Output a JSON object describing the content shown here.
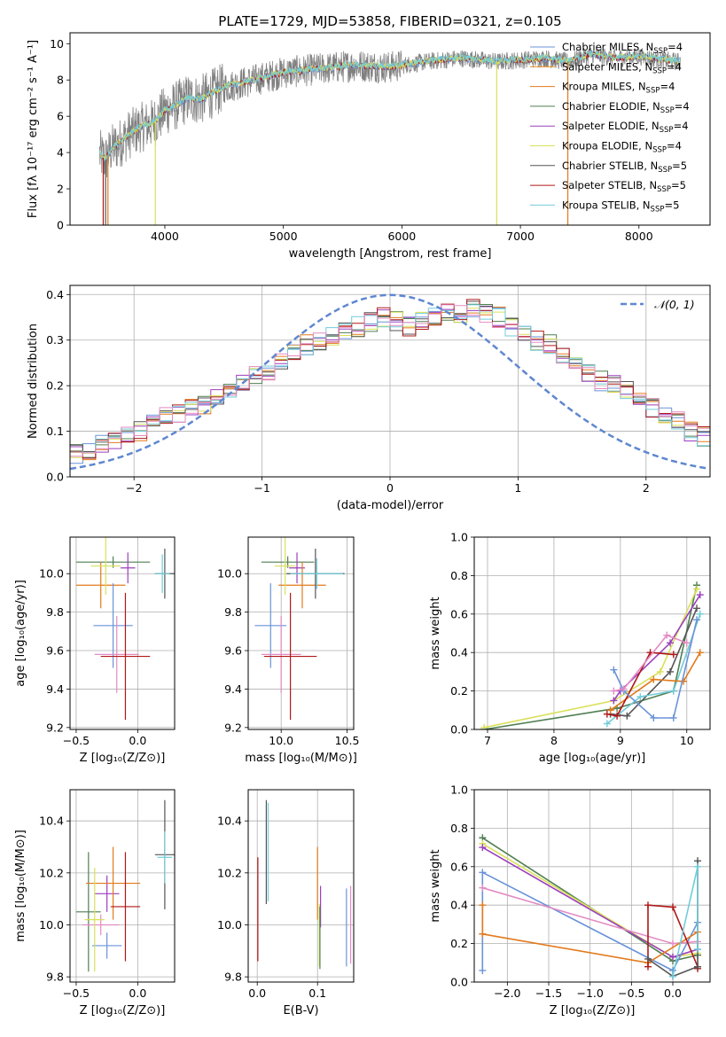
{
  "title": "PLATE=1729, MJD=53858, FIBERID=0321, z=0.105",
  "colors": {
    "chabrier_miles": "#6a93d8",
    "salpeter_miles": "#e8880e",
    "kroupa_miles": "#e27a1c",
    "chabrier_elodie": "#4f7f52",
    "salpeter_elodie": "#9b3fbd",
    "kroupa_elodie": "#d9e05a",
    "chabrier_stelib": "#555555",
    "salpeter_stelib": "#b01818",
    "kroupa_stelib": "#72ccd9",
    "data": "#808080",
    "gauss": "#5f87d0",
    "pink": "#e38bc3"
  },
  "chart_data": [
    {
      "id": "spectrum",
      "type": "line",
      "xlabel": "wavelength [Angstrom, rest frame]",
      "ylabel": "Flux [fλ 10⁻¹⁷ erg cm⁻² s⁻¹ A⁻¹]",
      "xlim": [
        3200,
        8600
      ],
      "ylim": [
        0,
        10.6
      ],
      "xticks": [
        4000,
        5000,
        6000,
        7000,
        8000
      ],
      "yticks": [
        0,
        2,
        4,
        6,
        8,
        10
      ],
      "legend_placement": "top-right",
      "legend": [
        {
          "label": "Chabrier MILES, N",
          "sub": "SSP",
          "suffix": "=4",
          "color": "#6a93d8"
        },
        {
          "label": "Salpeter MILES, N",
          "sub": "SSP",
          "suffix": "=4",
          "color": "#e8880e"
        },
        {
          "label": "Kroupa MILES, N",
          "sub": "SSP",
          "suffix": "=4",
          "color": "#e27a1c"
        },
        {
          "label": "Chabrier ELODIE, N",
          "sub": "SSP",
          "suffix": "=4",
          "color": "#4f7f52"
        },
        {
          "label": "Salpeter ELODIE, N",
          "sub": "SSP",
          "suffix": "=4",
          "color": "#9b3fbd"
        },
        {
          "label": "Kroupa ELODIE, N",
          "sub": "SSP",
          "suffix": "=4",
          "color": "#d9e05a"
        },
        {
          "label": "Chabrier STELIB, N",
          "sub": "SSP",
          "suffix": "=5",
          "color": "#555555"
        },
        {
          "label": "Salpeter STELIB, N",
          "sub": "SSP",
          "suffix": "=5",
          "color": "#b01818"
        },
        {
          "label": "Kroupa STELIB, N",
          "sub": "SSP",
          "suffix": "=5",
          "color": "#72ccd9"
        }
      ],
      "data_range": [
        3450,
        8350
      ],
      "model_curve": {
        "x": [
          3450,
          3500,
          3550,
          3600,
          3700,
          3800,
          3900,
          4000,
          4100,
          4200,
          4300,
          4500,
          4700,
          5000,
          5300,
          5600,
          5900,
          6200,
          6500,
          6800,
          7000,
          7200,
          7400,
          7600,
          7800,
          8000,
          8200,
          8350
        ],
        "y": [
          3.9,
          3.6,
          4.2,
          4.4,
          5.0,
          5.4,
          5.6,
          6.3,
          6.6,
          7.0,
          6.9,
          7.6,
          7.9,
          8.4,
          8.6,
          8.8,
          8.7,
          9.0,
          9.2,
          9.0,
          9.1,
          9.2,
          9.0,
          9.4,
          9.2,
          9.3,
          9.1,
          9.0
        ]
      }
    },
    {
      "id": "residuals",
      "type": "histogram",
      "xlabel": "(data-model)/error",
      "ylabel": "Normed distribution",
      "xlim": [
        -2.5,
        2.5
      ],
      "ylim": [
        0,
        0.42
      ],
      "xticks": [
        -2,
        -1,
        0,
        1,
        2
      ],
      "yticks": [
        0.0,
        0.1,
        0.2,
        0.3,
        0.4
      ],
      "legend_placement": "top-right",
      "legend_label": "𝒩(0, 1)",
      "bin_width": 0.1,
      "envelope": [
        0.05,
        0.06,
        0.07,
        0.08,
        0.09,
        0.1,
        0.12,
        0.13,
        0.14,
        0.15,
        0.16,
        0.18,
        0.19,
        0.21,
        0.22,
        0.23,
        0.25,
        0.27,
        0.29,
        0.3,
        0.31,
        0.32,
        0.33,
        0.34,
        0.35,
        0.34,
        0.33,
        0.34,
        0.35,
        0.36,
        0.36,
        0.37,
        0.36,
        0.35,
        0.33,
        0.32,
        0.3,
        0.29,
        0.27,
        0.25,
        0.23,
        0.21,
        0.2,
        0.19,
        0.17,
        0.15,
        0.14,
        0.12,
        0.1,
        0.09
      ]
    },
    {
      "id": "age_vs_Z",
      "type": "errorbar",
      "xlabel": "Z [log₁₀(Z/Z⊙)]",
      "ylabel": "age  [log₁₀(age/yr)]",
      "xlim": [
        -0.55,
        0.3
      ],
      "ylim": [
        9.19,
        10.19
      ],
      "xticks": [
        -0.5,
        0.0
      ],
      "xtick_labels": [
        "−0.5",
        "0.0"
      ],
      "yticks": [
        9.2,
        9.4,
        9.6,
        9.8,
        10.0
      ],
      "points": [
        {
          "x": -0.2,
          "y": 10.06,
          "xerr": 0.3,
          "yerr": 0.03,
          "c": "#4f7f52"
        },
        {
          "x": -0.08,
          "y": 10.03,
          "xerr": 0.06,
          "yerr": 0.08,
          "c": "#9b3fbd"
        },
        {
          "x": -0.3,
          "y": 9.94,
          "xerr": 0.2,
          "yerr": 0.12,
          "c": "#e27a1c"
        },
        {
          "x": -0.2,
          "y": 9.73,
          "xerr": 0.16,
          "yerr": 0.22,
          "c": "#6a93d8"
        },
        {
          "x": -0.17,
          "y": 9.58,
          "xerr": 0.18,
          "yerr": 0.2,
          "c": "#e38bc3"
        },
        {
          "x": -0.1,
          "y": 9.57,
          "xerr": 0.2,
          "yerr": 0.33,
          "c": "#b01818"
        },
        {
          "x": 0.22,
          "y": 10.0,
          "xerr": 0.08,
          "yerr": 0.13,
          "c": "#555555"
        },
        {
          "x": 0.2,
          "y": 10.0,
          "xerr": 0.06,
          "yerr": 0.1,
          "c": "#72ccd9"
        },
        {
          "x": -0.26,
          "y": 10.04,
          "xerr": 0.12,
          "yerr": 0.15,
          "c": "#d9e05a"
        }
      ]
    },
    {
      "id": "age_vs_mass",
      "type": "errorbar",
      "xlabel": "mass [log₁₀(M/M⊙)]",
      "ylabel": "",
      "xlim": [
        9.75,
        10.55
      ],
      "ylim": [
        9.19,
        10.19
      ],
      "xticks": [
        10.0,
        10.5
      ],
      "yticks": [
        9.2,
        9.4,
        9.6,
        9.8,
        10.0
      ],
      "points": [
        {
          "x": 10.05,
          "y": 10.06,
          "xerr": 0.2,
          "yerr": 0.03,
          "c": "#4f7f52"
        },
        {
          "x": 10.12,
          "y": 10.03,
          "xerr": 0.06,
          "yerr": 0.08,
          "c": "#9b3fbd"
        },
        {
          "x": 10.16,
          "y": 9.94,
          "xerr": 0.18,
          "yerr": 0.12,
          "c": "#e27a1c"
        },
        {
          "x": 9.92,
          "y": 9.73,
          "xerr": 0.12,
          "yerr": 0.22,
          "c": "#6a93d8"
        },
        {
          "x": 10.0,
          "y": 9.58,
          "xerr": 0.15,
          "yerr": 0.2,
          "c": "#e38bc3"
        },
        {
          "x": 10.07,
          "y": 9.57,
          "xerr": 0.2,
          "yerr": 0.33,
          "c": "#b01818"
        },
        {
          "x": 10.26,
          "y": 10.0,
          "xerr": 0.22,
          "yerr": 0.13,
          "c": "#555555"
        },
        {
          "x": 10.27,
          "y": 10.0,
          "xerr": 0.2,
          "yerr": 0.08,
          "c": "#72ccd9"
        },
        {
          "x": 10.03,
          "y": 10.04,
          "xerr": 0.08,
          "yerr": 0.15,
          "c": "#d9e05a"
        }
      ]
    },
    {
      "id": "massweight_vs_age",
      "type": "line",
      "xlabel": "age  [log₁₀(age/yr)]",
      "ylabel": "mass weight",
      "xlim": [
        6.8,
        10.35
      ],
      "ylim": [
        0,
        1
      ],
      "xticks": [
        7,
        8,
        9,
        10
      ],
      "yticks": [
        0.0,
        0.2,
        0.4,
        0.6,
        0.8,
        1.0
      ],
      "series": [
        {
          "c": "#4f7f52",
          "x": [
            6.95,
            8.95,
            9.8,
            10.15
          ],
          "y": [
            0.0,
            0.11,
            0.2,
            0.75
          ]
        },
        {
          "c": "#d9e05a",
          "x": [
            6.95,
            8.9,
            9.6,
            10.15
          ],
          "y": [
            0.01,
            0.15,
            0.3,
            0.73
          ]
        },
        {
          "c": "#9b3fbd",
          "x": [
            8.9,
            9.0,
            9.75,
            10.2
          ],
          "y": [
            0.15,
            0.2,
            0.45,
            0.7
          ]
        },
        {
          "c": "#555555",
          "x": [
            8.85,
            9.1,
            9.75,
            10.15
          ],
          "y": [
            0.08,
            0.07,
            0.3,
            0.63
          ]
        },
        {
          "c": "#72ccd9",
          "x": [
            8.8,
            9.3,
            9.8,
            10.2
          ],
          "y": [
            0.03,
            0.17,
            0.2,
            0.6
          ]
        },
        {
          "c": "#e27a1c",
          "x": [
            8.85,
            9.5,
            9.95,
            10.2
          ],
          "y": [
            0.1,
            0.26,
            0.25,
            0.4
          ]
        },
        {
          "c": "#b01818",
          "x": [
            8.8,
            8.95,
            9.45,
            9.8
          ],
          "y": [
            0.08,
            0.07,
            0.4,
            0.39
          ]
        },
        {
          "c": "#6a93d8",
          "x": [
            8.9,
            9.05,
            9.5,
            9.8,
            10.15
          ],
          "y": [
            0.31,
            0.2,
            0.06,
            0.06,
            0.57
          ]
        },
        {
          "c": "#e38bc3",
          "x": [
            8.9,
            9.05,
            9.7,
            10.0
          ],
          "y": [
            0.2,
            0.21,
            0.49,
            0.45
          ]
        }
      ]
    },
    {
      "id": "mass_vs_Z",
      "type": "errorbar",
      "xlabel": "Z [log₁₀(Z/Z⊙)]",
      "ylabel": "mass [log₁₀(M/M⊙)]",
      "xlim": [
        -0.55,
        0.3
      ],
      "ylim": [
        9.78,
        10.52
      ],
      "xticks": [
        -0.5,
        0.0
      ],
      "xtick_labels": [
        "−0.5",
        "0.0"
      ],
      "yticks": [
        9.8,
        10.0,
        10.2,
        10.4
      ],
      "points": [
        {
          "x": -0.4,
          "y": 10.05,
          "xerr": 0.1,
          "yerr": 0.23,
          "c": "#4f7f52"
        },
        {
          "x": -0.25,
          "y": 10.12,
          "xerr": 0.1,
          "yerr": 0.07,
          "c": "#9b3fbd"
        },
        {
          "x": -0.2,
          "y": 10.16,
          "xerr": 0.22,
          "yerr": 0.14,
          "c": "#e27a1c"
        },
        {
          "x": -0.25,
          "y": 9.92,
          "xerr": 0.12,
          "yerr": 0.05,
          "c": "#6a93d8"
        },
        {
          "x": -0.3,
          "y": 10.0,
          "xerr": 0.15,
          "yerr": 0.04,
          "c": "#e38bc3"
        },
        {
          "x": -0.1,
          "y": 10.07,
          "xerr": 0.12,
          "yerr": 0.21,
          "c": "#b01818"
        },
        {
          "x": 0.22,
          "y": 10.27,
          "xerr": 0.08,
          "yerr": 0.21,
          "c": "#555555"
        },
        {
          "x": 0.22,
          "y": 10.26,
          "xerr": 0.06,
          "yerr": 0.1,
          "c": "#72ccd9"
        },
        {
          "x": -0.35,
          "y": 10.02,
          "xerr": 0.08,
          "yerr": 0.2,
          "c": "#d9e05a"
        }
      ]
    },
    {
      "id": "mass_vs_ebv",
      "type": "errorbar",
      "xlabel": "E(B-V)",
      "ylabel": "",
      "xlim": [
        -0.015,
        0.16
      ],
      "ylim": [
        9.78,
        10.52
      ],
      "xticks": [
        0.0,
        0.1
      ],
      "yticks": [
        9.8,
        10.0,
        10.2,
        10.4
      ],
      "points": [
        {
          "x": 0.001,
          "y": 10.06,
          "yerr": 0.2,
          "c": "#b01818"
        },
        {
          "x": 0.015,
          "y": 10.28,
          "yerr": 0.2,
          "c": "#555555"
        },
        {
          "x": 0.018,
          "y": 10.28,
          "yerr": 0.19,
          "c": "#72ccd9"
        },
        {
          "x": 0.1,
          "y": 10.16,
          "yerr": 0.14,
          "c": "#e27a1c"
        },
        {
          "x": 0.103,
          "y": 9.96,
          "yerr": 0.12,
          "c": "#d9e05a"
        },
        {
          "x": 0.105,
          "y": 10.07,
          "yerr": 0.08,
          "c": "#9b3fbd"
        },
        {
          "x": 0.104,
          "y": 9.95,
          "yerr": 0.12,
          "c": "#4f7f52"
        },
        {
          "x": 0.148,
          "y": 9.99,
          "yerr": 0.15,
          "c": "#6a93d8"
        },
        {
          "x": 0.155,
          "y": 10.0,
          "yerr": 0.15,
          "c": "#e38bc3"
        }
      ]
    },
    {
      "id": "massweight_vs_Z",
      "type": "line",
      "xlabel": "Z [log₁₀(Z/Z⊙)]",
      "ylabel": "mass weight",
      "xlim": [
        -2.4,
        0.45
      ],
      "ylim": [
        0,
        1
      ],
      "xticks": [
        -2.0,
        -1.5,
        -1.0,
        -0.5,
        0.0
      ],
      "xtick_labels": [
        "−2.0",
        "−1.5",
        "−1.0",
        "−0.5",
        "0.0"
      ],
      "yticks": [
        0.0,
        0.2,
        0.4,
        0.6,
        0.8,
        1.0
      ],
      "series": [
        {
          "c": "#4f7f52",
          "x": [
            -2.3,
            0.0,
            0.3
          ],
          "y": [
            0.75,
            0.11,
            0.14
          ]
        },
        {
          "c": "#d9e05a",
          "x": [
            -2.3,
            0.0,
            0.3
          ],
          "y": [
            0.72,
            0.13,
            0.15
          ]
        },
        {
          "c": "#9b3fbd",
          "x": [
            -2.3,
            0.0,
            0.3
          ],
          "y": [
            0.7,
            0.13,
            0.17
          ]
        },
        {
          "c": "#6a93d8",
          "x": [
            -2.3,
            -2.3,
            0.0,
            0.3
          ],
          "y": [
            0.06,
            0.57,
            0.06,
            0.31
          ]
        },
        {
          "c": "#e38bc3",
          "x": [
            -2.3,
            0.0,
            0.3
          ],
          "y": [
            0.49,
            0.2,
            0.21
          ]
        },
        {
          "c": "#e27a1c",
          "x": [
            -2.3,
            -2.3,
            -0.3,
            0.3
          ],
          "y": [
            0.4,
            0.25,
            0.1,
            0.26
          ]
        },
        {
          "c": "#b01818",
          "x": [
            -0.3,
            -0.3,
            0.0,
            0.3,
            0.3
          ],
          "y": [
            0.08,
            0.4,
            0.39,
            0.08,
            0.07
          ]
        },
        {
          "c": "#555555",
          "x": [
            -0.3,
            0.0,
            0.3,
            0.3
          ],
          "y": [
            0.12,
            0.03,
            0.08,
            0.63
          ]
        },
        {
          "c": "#72ccd9",
          "x": [
            0.0,
            0.3,
            0.3
          ],
          "y": [
            0.03,
            0.6,
            0.17
          ]
        }
      ]
    }
  ]
}
